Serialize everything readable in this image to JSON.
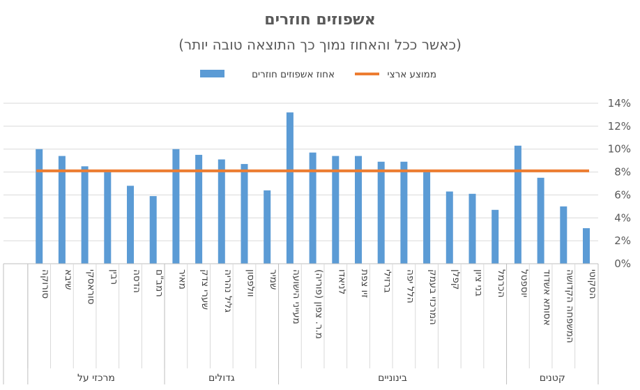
{
  "chart_data": {
    "type": "bar",
    "title": "אשפוזים חוזרים",
    "subtitle": "(כאשר ככל והאחוז נמוך כך התוצאה טובה יותר)",
    "ylim": [
      0,
      14
    ],
    "y_ticks": [
      "0%",
      "2%",
      "4%",
      "6%",
      "8%",
      "10%",
      "12%",
      "14%"
    ],
    "grid": true,
    "legend_position": "top",
    "categories": [
      "הסקוטי",
      "המשפחה הקדושה",
      "אסותא אשדוד",
      "יוספטל",
      "הכרמל",
      "בני ציון",
      "קפלן",
      "המרכזי בעמק",
      "הלל יפה",
      "ברזילי",
      "זיו צפת",
      "לניאדו",
      "מ.ר. צפון (פוריה)",
      "מעייני הישועה",
      "שמיר",
      "וולפסון",
      "גליל נהריה",
      "שערי צדק",
      "מאיר",
      "רמב\"ם",
      "הדסה",
      "רבין",
      "סוראסקי",
      "שיבא",
      "סורוקה"
    ],
    "groups": [
      {
        "label": "קטנים",
        "count": 4
      },
      {
        "label": "בינוניים",
        "count": 10
      },
      {
        "label": "גדולים",
        "count": 5
      },
      {
        "label": "מרכזי על",
        "count": 6
      }
    ],
    "series": [
      {
        "name": "אחוז אשפוזים חוזרים",
        "type": "bar",
        "color": "#5B9BD5",
        "values": [
          3.1,
          5.0,
          7.5,
          10.3,
          4.7,
          6.1,
          6.3,
          8.1,
          8.9,
          8.9,
          9.4,
          9.4,
          9.7,
          13.2,
          6.4,
          8.7,
          9.1,
          9.5,
          10.0,
          5.9,
          6.8,
          8.0,
          8.5,
          9.4,
          10.0
        ]
      },
      {
        "name": "ממוצע ארצי",
        "type": "line",
        "color": "#ED7D31",
        "value": 8.1
      }
    ]
  }
}
